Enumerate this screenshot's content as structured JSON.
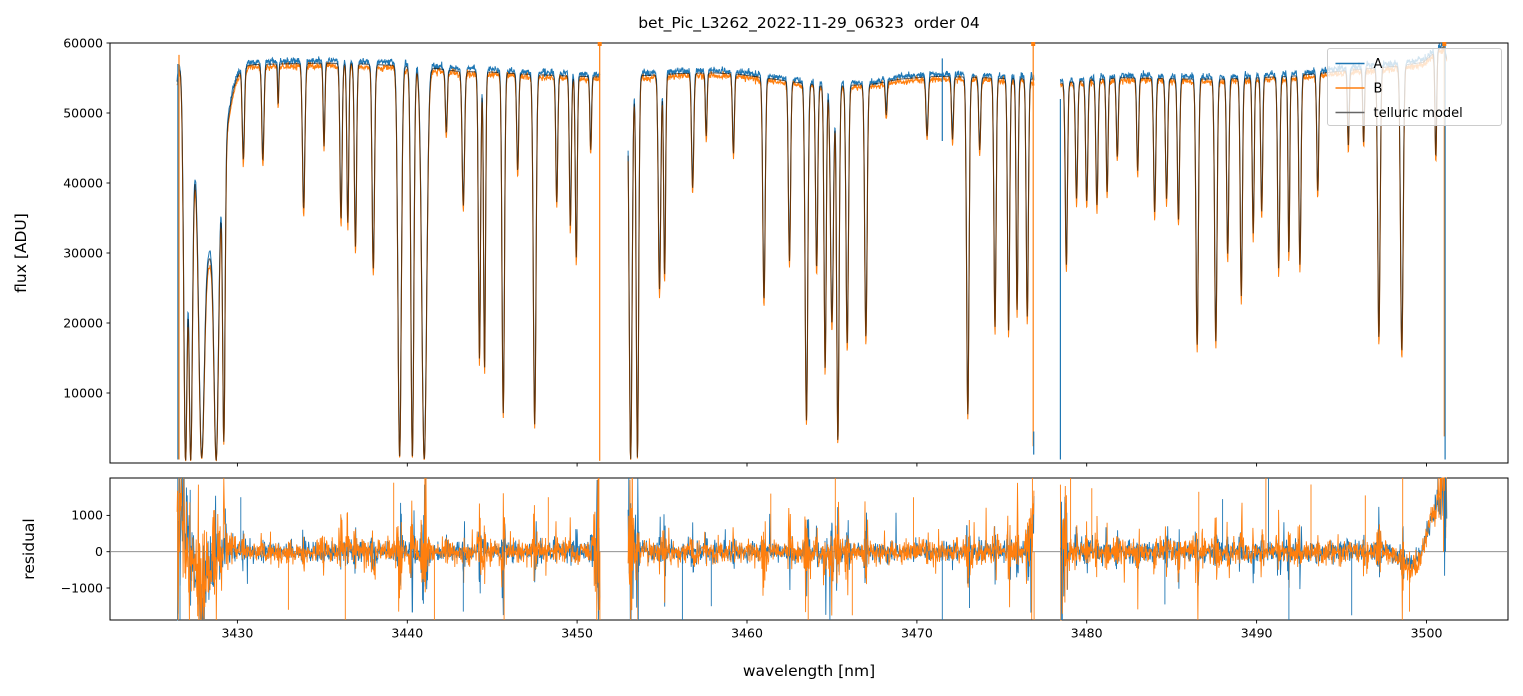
{
  "chart_data": {
    "type": "line",
    "title": "bet_Pic_L3262_2022-11-29_06323  order 04",
    "xlabel": "wavelength [nm]",
    "xlim": [
      3422.5,
      3504.8
    ],
    "xticks": [
      3430,
      3440,
      3450,
      3460,
      3470,
      3480,
      3490,
      3500
    ],
    "panels": [
      {
        "name": "flux",
        "ylabel": "flux [ADU]",
        "ylim": [
          0,
          60000
        ],
        "yticks": [
          10000,
          20000,
          30000,
          40000,
          50000,
          60000
        ],
        "grid": false
      },
      {
        "name": "residual",
        "ylabel": "residual",
        "ylim": [
          -1880,
          2030
        ],
        "yticks": [
          -1000,
          0,
          1000
        ],
        "zero_line": true,
        "zero_line_color": "#808080"
      }
    ],
    "legend": {
      "position": "upper right",
      "entries": [
        {
          "label": "A",
          "color": "#1f77b4"
        },
        {
          "label": "B",
          "color": "#ff7f0e"
        },
        {
          "label": "telluric model",
          "color": "#666666"
        }
      ]
    },
    "series": [
      {
        "key": "A",
        "label": "A",
        "color": "#1f77b4"
      },
      {
        "key": "B",
        "label": "B",
        "color": "#ff7f0e"
      },
      {
        "key": "telluric_model",
        "label": "telluric model",
        "color": "#666666",
        "draw_color": "#000000",
        "draw_opacity": 0.58
      }
    ],
    "segments": [
      {
        "wave_range": [
          3426.45,
          3451.35
        ],
        "continuum": [
          [
            3426.45,
            55500
          ],
          [
            3426.62,
            58300
          ],
          [
            3427.0,
            57800
          ],
          [
            3429.3,
            57200
          ],
          [
            3431,
            57300
          ],
          [
            3433,
            57400
          ],
          [
            3435,
            57500
          ],
          [
            3437,
            57400
          ],
          [
            3439,
            57200
          ],
          [
            3441.5,
            56800
          ],
          [
            3443,
            56300
          ],
          [
            3445,
            56200
          ],
          [
            3447,
            55900
          ],
          [
            3449,
            55700
          ],
          [
            3451.35,
            55500
          ]
        ]
      },
      {
        "wave_range": [
          3453.0,
          3476.9
        ],
        "continuum": [
          [
            3453.0,
            55800
          ],
          [
            3454,
            55700
          ],
          [
            3456,
            56000
          ],
          [
            3458,
            56100
          ],
          [
            3459.5,
            55900
          ],
          [
            3461,
            55400
          ],
          [
            3463,
            54700
          ],
          [
            3464.5,
            54200
          ],
          [
            3466,
            54300
          ],
          [
            3467.5,
            54500
          ],
          [
            3469,
            55200
          ],
          [
            3471,
            55600
          ],
          [
            3473,
            55500
          ],
          [
            3475,
            55300
          ],
          [
            3476.9,
            55200
          ]
        ]
      },
      {
        "wave_range": [
          3478.45,
          3501.2
        ],
        "continuum": [
          [
            3478.45,
            54600
          ],
          [
            3480,
            55000
          ],
          [
            3482,
            55400
          ],
          [
            3484,
            55300
          ],
          [
            3486,
            55200
          ],
          [
            3488,
            55200
          ],
          [
            3490,
            55400
          ],
          [
            3492,
            55600
          ],
          [
            3494,
            56100
          ],
          [
            3496,
            56600
          ],
          [
            3498,
            57000
          ],
          [
            3499.8,
            57600
          ],
          [
            3500.7,
            59500
          ],
          [
            3501.0,
            59800
          ],
          [
            3501.2,
            58000
          ]
        ]
      }
    ],
    "absorption_lines": [
      [
        3426.95,
        300,
        0.15
      ],
      [
        3427.25,
        300,
        0.15
      ],
      [
        3427.9,
        1200,
        0.22
      ],
      [
        3428.35,
        30000,
        1.0
      ],
      [
        3428.75,
        600,
        0.18
      ],
      [
        3429.2,
        4000,
        0.1
      ],
      [
        3430.35,
        44000,
        0.09
      ],
      [
        3431.5,
        43500,
        0.09
      ],
      [
        3432.4,
        51500,
        0.05
      ],
      [
        3433.9,
        36500,
        0.1
      ],
      [
        3435.1,
        45500,
        0.07
      ],
      [
        3436.1,
        35000,
        0.09
      ],
      [
        3436.5,
        34500,
        0.08
      ],
      [
        3436.95,
        31000,
        0.09
      ],
      [
        3438.0,
        28000,
        0.1
      ],
      [
        3439.55,
        700,
        0.14
      ],
      [
        3440.3,
        600,
        0.12
      ],
      [
        3441.0,
        500,
        0.2
      ],
      [
        3442.3,
        47500,
        0.08
      ],
      [
        3443.3,
        37000,
        0.1
      ],
      [
        3444.25,
        15000,
        0.09
      ],
      [
        3444.55,
        13500,
        0.08
      ],
      [
        3445.65,
        7000,
        0.1
      ],
      [
        3446.5,
        42000,
        0.08
      ],
      [
        3447.5,
        5500,
        0.11
      ],
      [
        3448.8,
        37500,
        0.08
      ],
      [
        3449.6,
        34000,
        0.08
      ],
      [
        3449.95,
        29500,
        0.08
      ],
      [
        3450.8,
        45000,
        0.07
      ],
      [
        3453.15,
        500,
        0.12
      ],
      [
        3453.55,
        800,
        0.1
      ],
      [
        3454.85,
        25000,
        0.1
      ],
      [
        3455.15,
        27000,
        0.08
      ],
      [
        3456.8,
        39500,
        0.09
      ],
      [
        3457.6,
        47000,
        0.07
      ],
      [
        3459.2,
        44500,
        0.08
      ],
      [
        3461.0,
        23500,
        0.1
      ],
      [
        3462.5,
        29000,
        0.09
      ],
      [
        3463.5,
        6000,
        0.11
      ],
      [
        3464.1,
        28000,
        0.09
      ],
      [
        3464.6,
        13500,
        0.09
      ],
      [
        3465.0,
        20000,
        0.12
      ],
      [
        3465.35,
        3000,
        0.1
      ],
      [
        3465.9,
        17000,
        0.1
      ],
      [
        3467.0,
        18000,
        0.1
      ],
      [
        3468.2,
        50000,
        0.07
      ],
      [
        3470.6,
        47000,
        0.09
      ],
      [
        3472.1,
        46500,
        0.08
      ],
      [
        3473.0,
        7000,
        0.1
      ],
      [
        3473.7,
        45000,
        0.08
      ],
      [
        3474.6,
        19500,
        0.09
      ],
      [
        3475.4,
        19000,
        0.09
      ],
      [
        3475.9,
        22000,
        0.08
      ],
      [
        3476.5,
        21000,
        0.09
      ],
      [
        3478.8,
        28500,
        0.09
      ],
      [
        3479.4,
        38000,
        0.09
      ],
      [
        3480.0,
        37500,
        0.09
      ],
      [
        3480.6,
        37000,
        0.09
      ],
      [
        3481.2,
        39000,
        0.08
      ],
      [
        3481.8,
        44000,
        0.08
      ],
      [
        3483.0,
        42000,
        0.08
      ],
      [
        3484.0,
        36000,
        0.09
      ],
      [
        3484.7,
        38000,
        0.09
      ],
      [
        3485.4,
        35000,
        0.09
      ],
      [
        3486.5,
        17000,
        0.1
      ],
      [
        3487.6,
        17500,
        0.1
      ],
      [
        3488.3,
        30000,
        0.09
      ],
      [
        3489.1,
        24000,
        0.09
      ],
      [
        3489.8,
        33000,
        0.08
      ],
      [
        3490.3,
        36000,
        0.08
      ],
      [
        3491.3,
        28000,
        0.09
      ],
      [
        3491.9,
        30000,
        0.07
      ],
      [
        3492.55,
        28500,
        0.09
      ],
      [
        3493.6,
        39000,
        0.08
      ],
      [
        3495.4,
        45500,
        0.07
      ],
      [
        3496.3,
        46000,
        0.07
      ],
      [
        3497.2,
        18000,
        0.1
      ],
      [
        3498.55,
        16000,
        0.11
      ],
      [
        3500.55,
        44000,
        0.07
      ]
    ],
    "artifact_spikes": [
      {
        "lambda": 3426.5,
        "series": "A",
        "flux_range": [
          500,
          57000
        ]
      },
      {
        "lambda": 3426.56,
        "series": "B",
        "flux_range": [
          500,
          58300
        ]
      },
      {
        "lambda": 3451.33,
        "series": "B",
        "flux_range": [
          300,
          60000
        ]
      },
      {
        "lambda": 3471.5,
        "series": "A",
        "flux_range": [
          46000,
          57800
        ]
      },
      {
        "lambda": 3476.85,
        "series": "B",
        "flux_range": [
          2400,
          60000
        ]
      },
      {
        "lambda": 3476.88,
        "series": "A",
        "flux_range": [
          1200,
          4500
        ]
      },
      {
        "lambda": 3478.45,
        "series": "A",
        "flux_range": [
          500,
          52000
        ]
      },
      {
        "lambda": 3501.05,
        "series": "B",
        "flux_range": [
          3800,
          60000
        ]
      },
      {
        "lambda": 3501.1,
        "series": "A",
        "flux_range": [
          500,
          60000
        ]
      }
    ],
    "clip_markers": [
      {
        "lambda": 3451.33,
        "color": "#ff7f0e"
      },
      {
        "lambda": 3476.85,
        "color": "#ff7f0e"
      },
      {
        "lambda": 3501.05,
        "color": "#ff7f0e"
      }
    ],
    "residual_spikes": [
      [
        3426.62,
        "A",
        -1880
      ],
      [
        3430.2,
        "A",
        1500
      ],
      [
        3433.0,
        "B",
        -1600
      ],
      [
        3436.35,
        "B",
        -1880
      ],
      [
        3439.2,
        "B",
        1900
      ],
      [
        3441.6,
        "B",
        -1880
      ],
      [
        3443.3,
        "A",
        -1650
      ],
      [
        3445.7,
        "B",
        -1880
      ],
      [
        3448.3,
        "B",
        1500
      ],
      [
        3451.28,
        "B",
        2030
      ],
      [
        3451.34,
        "B",
        -1880
      ],
      [
        3453.25,
        "B",
        2030
      ],
      [
        3453.6,
        "A",
        -1880
      ],
      [
        3456.2,
        "A",
        -1880
      ],
      [
        3457.9,
        "A",
        -1500
      ],
      [
        3461.4,
        "B",
        1600
      ],
      [
        3463.6,
        "B",
        -1880
      ],
      [
        3465.2,
        "B",
        2030
      ],
      [
        3466.2,
        "B",
        -1750
      ],
      [
        3469.8,
        "B",
        1500
      ],
      [
        3471.5,
        "A",
        -1880
      ],
      [
        3473.1,
        "A",
        -1550
      ],
      [
        3476.8,
        "B",
        2030
      ],
      [
        3476.9,
        "B",
        -1880
      ],
      [
        3478.5,
        "A",
        -1880
      ],
      [
        3479.05,
        "B",
        2030
      ],
      [
        3480.3,
        "B",
        1750
      ],
      [
        3484.6,
        "A",
        -1450
      ],
      [
        3486.6,
        "B",
        1650
      ],
      [
        3488.0,
        "A",
        1450
      ],
      [
        3490.55,
        "B",
        2030
      ],
      [
        3490.7,
        "A",
        2030
      ],
      [
        3491.9,
        "A",
        -1880
      ],
      [
        3493.2,
        "B",
        1850
      ],
      [
        3495.6,
        "A",
        -1750
      ],
      [
        3496.4,
        "B",
        1550
      ],
      [
        3498.6,
        "B",
        2030
      ],
      [
        3499.0,
        "B",
        -1650
      ],
      [
        3501.0,
        "B",
        2030
      ],
      [
        3501.12,
        "A",
        2030
      ]
    ],
    "noise_seed": 42,
    "residual_noise": {
      "sigma_A": 135,
      "sigma_B": 160,
      "line_amp": 5.5,
      "edge_amp": 9
    }
  }
}
